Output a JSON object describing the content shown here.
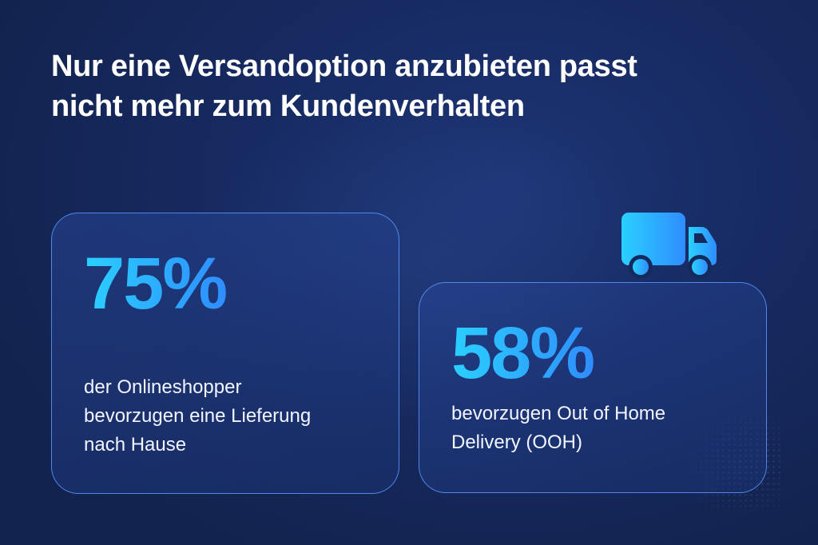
{
  "headline": {
    "line1": "Nur eine Versandoption anzubieten passt",
    "line2": "nicht mehr zum Kundenverhalten"
  },
  "stats": [
    {
      "percent": "75%",
      "description_lines": [
        "der Onlineshopper",
        "bevorzugen eine Lieferung",
        "nach Hause"
      ]
    },
    {
      "percent": "58%",
      "description_lines": [
        "bevorzugen Out of Home",
        "Delivery (OOH)"
      ]
    }
  ],
  "icons": {
    "delivery": "truck-icon"
  },
  "colors": {
    "background": "#172b63",
    "accent_start": "#2ad0ff",
    "accent_end": "#2f8dff",
    "card_border": "#5a96ff",
    "text": "#ffffff"
  }
}
